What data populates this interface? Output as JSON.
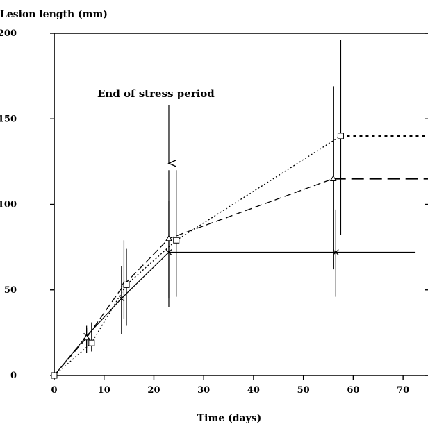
{
  "chart_data": {
    "type": "line",
    "xlabel": "Time (days)",
    "ylabel": "Lesion length (mm)",
    "xlim": [
      0,
      75
    ],
    "ylim": [
      0,
      200
    ],
    "x_ticks": [
      "0",
      "10",
      "20",
      "30",
      "40",
      "50",
      "60",
      "70"
    ],
    "y_ticks": [
      "0",
      "50",
      "100",
      "150",
      "200"
    ],
    "grid": false,
    "annotation": {
      "text": "End of stress period",
      "arrow_x": 23,
      "arrow_from_y": 158,
      "arrow_to_y": 124
    },
    "series": [
      {
        "line_style": "solid",
        "marker": "x",
        "x": [
          0,
          6.5,
          13.5,
          23,
          56.5
        ],
        "y": [
          0,
          23,
          45,
          72,
          72
        ],
        "error": [
          [
            0,
            0
          ],
          [
            13,
            28
          ],
          [
            24,
            64
          ],
          [
            40,
            120
          ],
          [
            46,
            97
          ]
        ],
        "extension_to_x": 72.5
      },
      {
        "line_style": "dashed",
        "marker": "triangle",
        "x": [
          0,
          6.5,
          14,
          23,
          56
        ],
        "y": [
          0,
          22,
          53,
          80,
          115
        ],
        "error": [
          [
            0,
            0
          ],
          [
            16,
            29
          ],
          [
            33,
            79
          ],
          [
            45,
            102
          ],
          [
            62,
            169
          ]
        ],
        "extension_to_x": 75
      },
      {
        "line_style": "dotted",
        "marker": "square",
        "x": [
          0,
          7.5,
          14.5,
          24.5,
          57.5
        ],
        "y": [
          0,
          19,
          53,
          79,
          140
        ],
        "error": [
          [
            0,
            0
          ],
          [
            14,
            31
          ],
          [
            29,
            74
          ],
          [
            46,
            120
          ],
          [
            82,
            196
          ]
        ],
        "extension_to_x": 75
      }
    ]
  }
}
